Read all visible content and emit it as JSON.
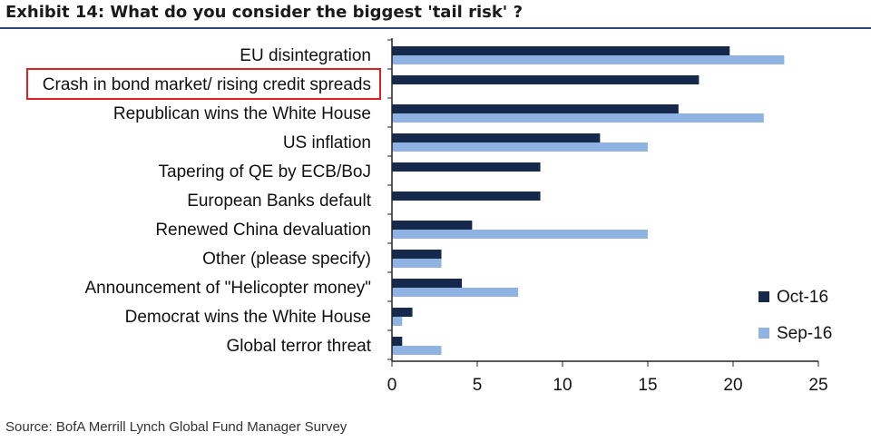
{
  "title": "Exhibit 14: What do you consider the biggest 'tail risk' ?",
  "source": "Source: BofA Merrill Lynch Global Fund Manager Survey",
  "colors": {
    "oct": "#17284d",
    "sep": "#8fb4e3",
    "highlight": "#e02020",
    "title_rule": "#2a4a7f"
  },
  "chart_data": {
    "type": "bar",
    "orientation": "horizontal",
    "categories": [
      "EU disintegration",
      "Crash in bond market/ rising credit spreads",
      "Republican wins the White House",
      "US inflation",
      "Tapering of QE by ECB/BoJ",
      "European Banks default",
      "Renewed China devaluation",
      "Other (please specify)",
      "Announcement of \"Helicopter money\"",
      "Democrat wins the White House",
      "Global terror threat"
    ],
    "series": [
      {
        "name": "Oct-16",
        "values": [
          19.8,
          18.0,
          16.8,
          12.2,
          8.7,
          8.7,
          4.7,
          2.9,
          4.1,
          1.2,
          0.6
        ]
      },
      {
        "name": "Sep-16",
        "values": [
          23.0,
          null,
          21.8,
          15.0,
          null,
          null,
          15.0,
          2.9,
          7.4,
          0.6,
          2.9
        ]
      }
    ],
    "xlim": [
      0,
      25
    ],
    "xticks": [
      "0",
      "5",
      "10",
      "15",
      "20",
      "25"
    ],
    "highlighted_category": "Crash in bond market/ rising credit spreads",
    "legend_position": "bottom-right",
    "grid": false
  }
}
